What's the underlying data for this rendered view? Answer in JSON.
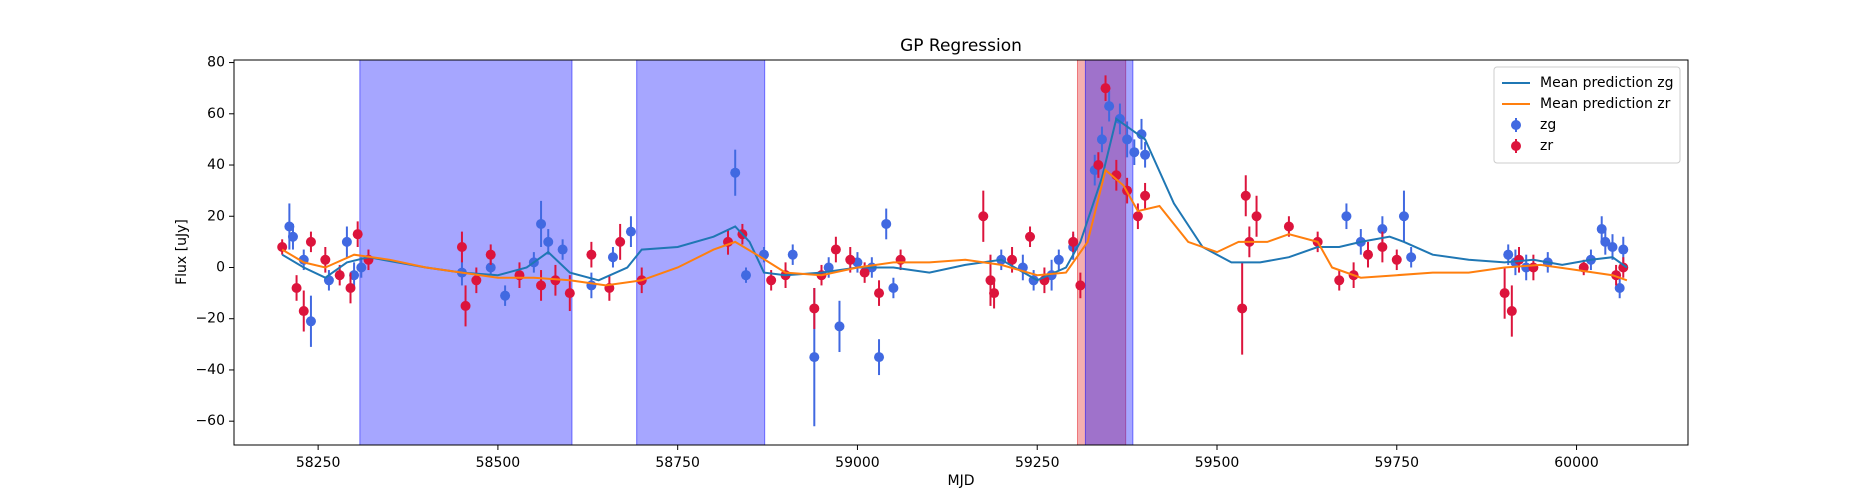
{
  "chart_data": {
    "type": "errorbar",
    "title": "GP Regression",
    "xlabel": "MJD",
    "ylabel": "Flux [uJy]",
    "xlim": [
      58133,
      60155
    ],
    "ylim": [
      -69.3,
      81
    ],
    "xticks": [
      58250,
      58500,
      58750,
      59000,
      59250,
      59500,
      59750,
      60000
    ],
    "yticks": [
      {
        "value": -60,
        "label": "−60"
      },
      {
        "value": -40,
        "label": "−40"
      },
      {
        "value": -20,
        "label": "−20"
      },
      0,
      20,
      40,
      60,
      80
    ],
    "legend": "upper right",
    "spans": [
      {
        "x0": 58308,
        "x1": 58603,
        "color": "#0000ff"
      },
      {
        "x0": 58693,
        "x1": 58871,
        "color": "#0000ff"
      },
      {
        "x0": 59306,
        "x1": 59373,
        "color": "#e31a1c"
      },
      {
        "x0": 59317,
        "x1": 59383,
        "color": "#0000ff"
      }
    ],
    "span_alpha": 0.35,
    "lines": [
      {
        "name": "Mean prediction zg",
        "color": "#1f77b4",
        "x": [
          58200,
          58230,
          58260,
          58290,
          58320,
          58400,
          58450,
          58500,
          58540,
          58570,
          58600,
          58640,
          58680,
          58700,
          58750,
          58800,
          58830,
          58850,
          58870,
          58900,
          58950,
          59000,
          59050,
          59100,
          59150,
          59200,
          59250,
          59290,
          59310,
          59340,
          59360,
          59375,
          59400,
          59440,
          59480,
          59520,
          59560,
          59600,
          59640,
          59670,
          59700,
          59740,
          59760,
          59800,
          59850,
          59900,
          59940,
          59980,
          60020,
          60050,
          60070
        ],
        "values": [
          5,
          0,
          -4,
          2,
          4,
          0,
          -2,
          -3,
          0,
          6,
          -2,
          -5,
          0,
          7,
          8,
          12,
          16,
          10,
          -2,
          -3,
          -2,
          0,
          0,
          -2,
          1,
          3,
          -5,
          0,
          10,
          35,
          58,
          55,
          50,
          25,
          8,
          2,
          2,
          4,
          8,
          8,
          10,
          12,
          10,
          5,
          3,
          2,
          3,
          1,
          3,
          4,
          0
        ]
      },
      {
        "name": "Mean prediction zr",
        "color": "#ff7f0e",
        "x": [
          58200,
          58230,
          58260,
          58300,
          58350,
          58400,
          58450,
          58500,
          58550,
          58600,
          58650,
          58700,
          58750,
          58800,
          58830,
          58860,
          58900,
          58950,
          59000,
          59050,
          59100,
          59150,
          59200,
          59250,
          59290,
          59320,
          59345,
          59370,
          59390,
          59420,
          59460,
          59500,
          59530,
          59570,
          59600,
          59640,
          59660,
          59700,
          59750,
          59800,
          59850,
          59900,
          59950,
          60000,
          60050,
          60070
        ],
        "values": [
          7,
          2,
          0,
          5,
          3,
          0,
          -2,
          -4,
          -4,
          -5,
          -7,
          -5,
          0,
          7,
          10,
          5,
          -2,
          -3,
          0,
          2,
          2,
          3,
          1,
          -3,
          -2,
          10,
          38,
          32,
          22,
          24,
          10,
          6,
          10,
          10,
          13,
          10,
          0,
          -4,
          -3,
          -2,
          -2,
          0,
          1,
          -1,
          -3,
          -5
        ]
      }
    ],
    "series": [
      {
        "name": "zg",
        "color": "#4169e1",
        "x": [
          58210,
          58215,
          58230,
          58240,
          58265,
          58290,
          58300,
          58310,
          58450,
          58490,
          58510,
          58550,
          58560,
          58570,
          58590,
          58630,
          58660,
          58685,
          58830,
          58845,
          58870,
          58910,
          58940,
          58960,
          58975,
          59000,
          59020,
          59030,
          59040,
          59050,
          59200,
          59230,
          59245,
          59270,
          59280,
          59300,
          59330,
          59340,
          59350,
          59365,
          59375,
          59385,
          59395,
          59400,
          59680,
          59700,
          59730,
          59760,
          59770,
          59905,
          59915,
          59930,
          59960,
          60020,
          60035,
          60040,
          60050,
          60060,
          60065
        ],
        "values": [
          16,
          12,
          3,
          -21,
          -5,
          10,
          -3,
          0,
          -2,
          0,
          -11,
          2,
          17,
          10,
          7,
          -7,
          4,
          14,
          37,
          -3,
          5,
          5,
          -35,
          0,
          -23,
          2,
          0,
          -35,
          17,
          -8,
          3,
          0,
          -5,
          -3,
          3,
          8,
          38,
          50,
          63,
          58,
          50,
          45,
          52,
          44,
          20,
          10,
          15,
          20,
          4,
          5,
          2,
          0,
          2,
          3,
          15,
          10,
          8,
          -8,
          7
        ],
        "errors": [
          9,
          5,
          4,
          10,
          4,
          6,
          5,
          4,
          5,
          3,
          4,
          4,
          9,
          5,
          4,
          5,
          4,
          6,
          9,
          3,
          3,
          4,
          27,
          4,
          10,
          4,
          4,
          7,
          6,
          4,
          4,
          5,
          4,
          6,
          4,
          5,
          6,
          5,
          6,
          6,
          7,
          5,
          6,
          5,
          5,
          5,
          5,
          10,
          4,
          4,
          5,
          5,
          4,
          4,
          5,
          5,
          5,
          4,
          5
        ]
      },
      {
        "name": "zr",
        "color": "#dc143c",
        "x": [
          58200,
          58220,
          58230,
          58240,
          58260,
          58280,
          58295,
          58305,
          58320,
          58450,
          58455,
          58470,
          58490,
          58530,
          58560,
          58580,
          58600,
          58630,
          58655,
          58670,
          58700,
          58820,
          58840,
          58880,
          58900,
          58940,
          58950,
          58970,
          58990,
          59010,
          59030,
          59060,
          59175,
          59185,
          59190,
          59215,
          59240,
          59260,
          59300,
          59310,
          59335,
          59345,
          59360,
          59375,
          59390,
          59400,
          59535,
          59540,
          59545,
          59555,
          59600,
          59640,
          59670,
          59690,
          59710,
          59730,
          59750,
          59900,
          59910,
          59920,
          59940,
          60010,
          60055,
          60065
        ],
        "values": [
          8,
          -8,
          -17,
          10,
          3,
          -3,
          -8,
          13,
          3,
          8,
          -15,
          -5,
          5,
          -3,
          -7,
          -5,
          -10,
          5,
          -8,
          10,
          -5,
          10,
          13,
          -5,
          -3,
          -16,
          -3,
          7,
          3,
          -2,
          -10,
          3,
          20,
          -5,
          -10,
          3,
          12,
          -5,
          10,
          -7,
          40,
          70,
          36,
          30,
          20,
          28,
          -16,
          28,
          10,
          20,
          16,
          10,
          -5,
          -3,
          5,
          8,
          3,
          -10,
          -17,
          3,
          0,
          0,
          -3,
          0
        ],
        "errors": [
          3,
          5,
          8,
          4,
          5,
          4,
          6,
          5,
          4,
          6,
          8,
          5,
          4,
          5,
          6,
          6,
          7,
          5,
          5,
          7,
          5,
          5,
          4,
          4,
          5,
          8,
          4,
          5,
          5,
          4,
          5,
          4,
          10,
          10,
          6,
          5,
          4,
          5,
          4,
          5,
          5,
          5,
          6,
          5,
          5,
          5,
          18,
          8,
          6,
          8,
          4,
          4,
          4,
          5,
          5,
          6,
          4,
          10,
          10,
          5,
          5,
          3,
          4,
          4
        ]
      }
    ]
  }
}
